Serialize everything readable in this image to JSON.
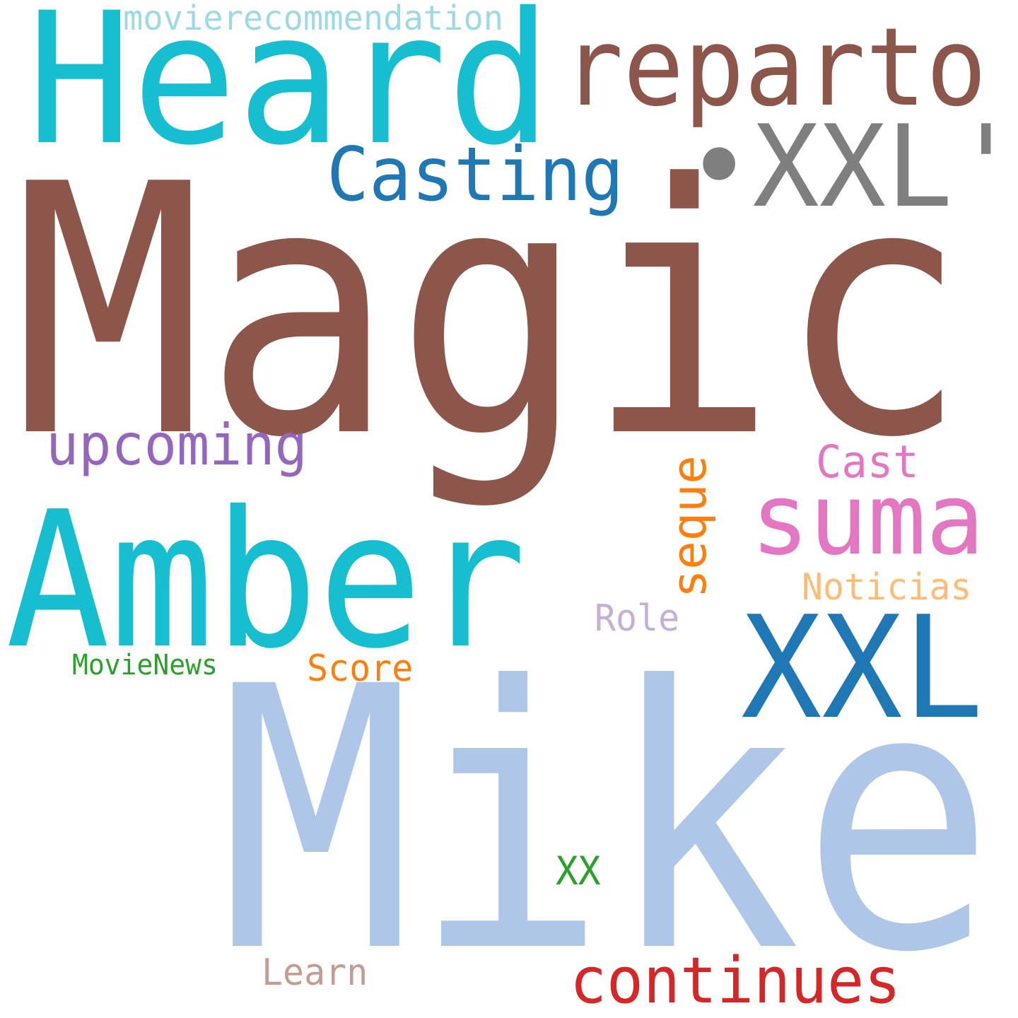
{
  "words": [
    {
      "key": "magic",
      "text": "Magic",
      "color": "#8c564b"
    },
    {
      "key": "mike",
      "text": "Mike",
      "color": "#aec7e8"
    },
    {
      "key": "heard",
      "text": "Heard",
      "color": "#17becf"
    },
    {
      "key": "amber",
      "text": "Amber",
      "color": "#17becf"
    },
    {
      "key": "reparto",
      "text": "reparto",
      "color": "#8c564b"
    },
    {
      "key": "xxl-quoted",
      "text": "•XXL'",
      "color": "#7f7f7f"
    },
    {
      "key": "xxl",
      "text": "XXL",
      "color": "#1f77b4"
    },
    {
      "key": "casting",
      "text": "Casting",
      "color": "#1f77b4"
    },
    {
      "key": "suma",
      "text": "suma",
      "color": "#e377c2"
    },
    {
      "key": "upcoming",
      "text": "upcoming",
      "color": "#9467bd"
    },
    {
      "key": "continues",
      "text": "continues",
      "color": "#d62728"
    },
    {
      "key": "seque",
      "text": "seque",
      "color": "#ff7f0e"
    },
    {
      "key": "cast",
      "text": "Cast",
      "color": "#e377c2"
    },
    {
      "key": "noticias",
      "text": "Noticias",
      "color": "#ffbb78"
    },
    {
      "key": "movierecommendation",
      "text": "movierecommendation",
      "color": "#9edae5"
    },
    {
      "key": "score",
      "text": "Score",
      "color": "#ff7f0e"
    },
    {
      "key": "role",
      "text": "Role",
      "color": "#c5b0d5"
    },
    {
      "key": "movienews",
      "text": "MovieNews",
      "color": "#2ca02c"
    },
    {
      "key": "learn",
      "text": "Learn",
      "color": "#c49c94"
    },
    {
      "key": "xx",
      "text": "XX",
      "color": "#2ca02c"
    }
  ]
}
